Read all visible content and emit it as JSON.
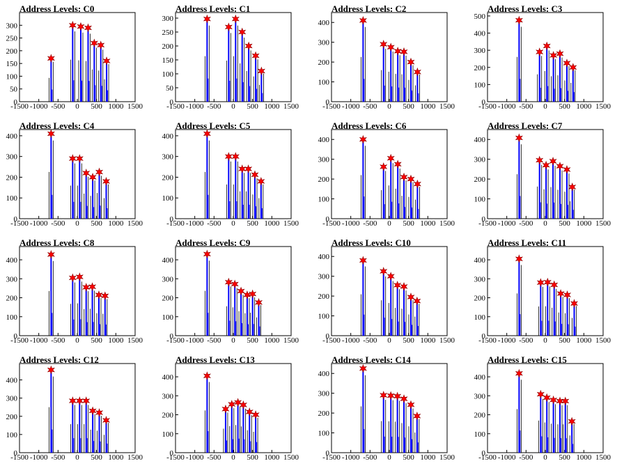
{
  "page": {
    "columns": 4,
    "rows": 4
  },
  "colors": {
    "axis": "#000000",
    "hist_black": "#000000",
    "hist_blue": "#0000ff",
    "marker": "#ff0000",
    "marker_outline": "#8b0000"
  },
  "chart_data": [
    {
      "type": "bar",
      "title": "Address Levels: C0",
      "xlim": [
        -1500,
        1500
      ],
      "xticks": [
        -1500,
        -1000,
        -500,
        0,
        500,
        1000,
        1500
      ],
      "ylim": [
        0,
        350
      ],
      "yticks": [
        0,
        50,
        100,
        150,
        200,
        250,
        300
      ],
      "peaks": [
        {
          "x": -680,
          "y": 170
        },
        {
          "x": -120,
          "y": 300
        },
        {
          "x": 90,
          "y": 295
        },
        {
          "x": 280,
          "y": 290
        },
        {
          "x": 440,
          "y": 230
        },
        {
          "x": 610,
          "y": 222
        },
        {
          "x": 760,
          "y": 160
        }
      ]
    },
    {
      "type": "bar",
      "title": "Address Levels: C1",
      "xlim": [
        -1500,
        1500
      ],
      "xticks": [
        -1500,
        -1000,
        -500,
        0,
        500,
        1000,
        1500
      ],
      "ylim": [
        0,
        320
      ],
      "yticks": [
        0,
        50,
        100,
        150,
        200,
        250,
        300
      ],
      "peaks": [
        {
          "x": -680,
          "y": 297
        },
        {
          "x": -120,
          "y": 268
        },
        {
          "x": 60,
          "y": 297
        },
        {
          "x": 230,
          "y": 250
        },
        {
          "x": 400,
          "y": 200
        },
        {
          "x": 580,
          "y": 165
        },
        {
          "x": 730,
          "y": 110
        }
      ]
    },
    {
      "type": "bar",
      "title": "Address Levels: C2",
      "xlim": [
        -1500,
        1500
      ],
      "xticks": [
        -1500,
        -1000,
        -500,
        0,
        500,
        1000,
        1500
      ],
      "ylim": [
        0,
        450
      ],
      "yticks": [
        0,
        100,
        200,
        300,
        400
      ],
      "peaks": [
        {
          "x": -680,
          "y": 410
        },
        {
          "x": -150,
          "y": 290
        },
        {
          "x": 40,
          "y": 275
        },
        {
          "x": 220,
          "y": 255
        },
        {
          "x": 380,
          "y": 252
        },
        {
          "x": 560,
          "y": 200
        },
        {
          "x": 730,
          "y": 150
        }
      ]
    },
    {
      "type": "bar",
      "title": "Address Levels: C3",
      "xlim": [
        -1500,
        1500
      ],
      "xticks": [
        -1500,
        -1000,
        -500,
        0,
        500,
        1000,
        1500
      ],
      "ylim": [
        0,
        520
      ],
      "yticks": [
        0,
        100,
        200,
        300,
        400,
        500
      ],
      "peaks": [
        {
          "x": -680,
          "y": 475
        },
        {
          "x": -150,
          "y": 290
        },
        {
          "x": 40,
          "y": 325
        },
        {
          "x": 210,
          "y": 270
        },
        {
          "x": 380,
          "y": 280
        },
        {
          "x": 560,
          "y": 225
        },
        {
          "x": 720,
          "y": 200
        }
      ]
    },
    {
      "type": "bar",
      "title": "Address Levels: C4",
      "xlim": [
        -1500,
        1500
      ],
      "xticks": [
        -1500,
        -1000,
        -500,
        0,
        500,
        1000,
        1500
      ],
      "ylim": [
        0,
        430
      ],
      "yticks": [
        0,
        100,
        200,
        300,
        400
      ],
      "peaks": [
        {
          "x": -680,
          "y": 410
        },
        {
          "x": -120,
          "y": 290
        },
        {
          "x": 60,
          "y": 290
        },
        {
          "x": 230,
          "y": 220
        },
        {
          "x": 400,
          "y": 200
        },
        {
          "x": 570,
          "y": 225
        },
        {
          "x": 750,
          "y": 180
        }
      ]
    },
    {
      "type": "bar",
      "title": "Address Levels: C5",
      "xlim": [
        -1500,
        1500
      ],
      "xticks": [
        -1500,
        -1000,
        -500,
        0,
        500,
        1000,
        1500
      ],
      "ylim": [
        0,
        430
      ],
      "yticks": [
        0,
        100,
        200,
        300,
        400
      ],
      "peaks": [
        {
          "x": -680,
          "y": 410
        },
        {
          "x": -120,
          "y": 300
        },
        {
          "x": 60,
          "y": 300
        },
        {
          "x": 230,
          "y": 240
        },
        {
          "x": 390,
          "y": 240
        },
        {
          "x": 560,
          "y": 212
        },
        {
          "x": 720,
          "y": 180
        }
      ]
    },
    {
      "type": "bar",
      "title": "Address Levels: C6",
      "xlim": [
        -1500,
        1500
      ],
      "xticks": [
        -1500,
        -1000,
        -500,
        0,
        500,
        1000,
        1500
      ],
      "ylim": [
        0,
        450
      ],
      "yticks": [
        0,
        100,
        200,
        300,
        400
      ],
      "peaks": [
        {
          "x": -680,
          "y": 400
        },
        {
          "x": -150,
          "y": 262
        },
        {
          "x": 40,
          "y": 305
        },
        {
          "x": 220,
          "y": 275
        },
        {
          "x": 380,
          "y": 210
        },
        {
          "x": 560,
          "y": 200
        },
        {
          "x": 730,
          "y": 175
        }
      ]
    },
    {
      "type": "bar",
      "title": "Address Levels: C7",
      "xlim": [
        -1500,
        1500
      ],
      "xticks": [
        -1500,
        -1000,
        -500,
        0,
        500,
        1000,
        1500
      ],
      "ylim": [
        0,
        450
      ],
      "yticks": [
        0,
        100,
        200,
        300,
        400
      ],
      "peaks": [
        {
          "x": -680,
          "y": 408
        },
        {
          "x": -150,
          "y": 295
        },
        {
          "x": 20,
          "y": 270
        },
        {
          "x": 200,
          "y": 290
        },
        {
          "x": 380,
          "y": 265
        },
        {
          "x": 560,
          "y": 248
        },
        {
          "x": 700,
          "y": 160
        }
      ]
    },
    {
      "type": "bar",
      "title": "Address Levels: C8",
      "xlim": [
        -1500,
        1500
      ],
      "xticks": [
        -1500,
        -1000,
        -500,
        0,
        500,
        1000,
        1500
      ],
      "ylim": [
        0,
        470
      ],
      "yticks": [
        0,
        100,
        200,
        300,
        400
      ],
      "peaks": [
        {
          "x": -680,
          "y": 428
        },
        {
          "x": -120,
          "y": 305
        },
        {
          "x": 60,
          "y": 310
        },
        {
          "x": 230,
          "y": 255
        },
        {
          "x": 390,
          "y": 258
        },
        {
          "x": 560,
          "y": 215
        },
        {
          "x": 720,
          "y": 210
        }
      ]
    },
    {
      "type": "bar",
      "title": "Address Levels: C9",
      "xlim": [
        -1500,
        1500
      ],
      "xticks": [
        -1500,
        -1000,
        -500,
        0,
        500,
        1000,
        1500
      ],
      "ylim": [
        0,
        470
      ],
      "yticks": [
        0,
        100,
        200,
        300,
        400
      ],
      "peaks": [
        {
          "x": -680,
          "y": 430
        },
        {
          "x": -120,
          "y": 282
        },
        {
          "x": 40,
          "y": 272
        },
        {
          "x": 200,
          "y": 235
        },
        {
          "x": 360,
          "y": 215
        },
        {
          "x": 500,
          "y": 220
        },
        {
          "x": 660,
          "y": 175
        }
      ]
    },
    {
      "type": "bar",
      "title": "Address Levels: C10",
      "xlim": [
        -1500,
        1500
      ],
      "xticks": [
        -1500,
        -1000,
        -500,
        0,
        500,
        1000,
        1500
      ],
      "ylim": [
        0,
        450
      ],
      "yticks": [
        0,
        100,
        200,
        300,
        400
      ],
      "peaks": [
        {
          "x": -680,
          "y": 380
        },
        {
          "x": -150,
          "y": 325
        },
        {
          "x": 40,
          "y": 300
        },
        {
          "x": 210,
          "y": 255
        },
        {
          "x": 380,
          "y": 248
        },
        {
          "x": 560,
          "y": 195
        },
        {
          "x": 720,
          "y": 175
        }
      ]
    },
    {
      "type": "bar",
      "title": "Address Levels: C11",
      "xlim": [
        -1500,
        1500
      ],
      "xticks": [
        -1500,
        -1000,
        -500,
        0,
        500,
        1000,
        1500
      ],
      "ylim": [
        0,
        470
      ],
      "yticks": [
        0,
        100,
        200,
        300,
        400
      ],
      "peaks": [
        {
          "x": -680,
          "y": 405
        },
        {
          "x": -120,
          "y": 280
        },
        {
          "x": 60,
          "y": 282
        },
        {
          "x": 230,
          "y": 268
        },
        {
          "x": 400,
          "y": 222
        },
        {
          "x": 570,
          "y": 215
        },
        {
          "x": 750,
          "y": 170
        }
      ]
    },
    {
      "type": "bar",
      "title": "Address Levels: C12",
      "xlim": [
        -1500,
        1500
      ],
      "xticks": [
        -1500,
        -1000,
        -500,
        0,
        500,
        1000,
        1500
      ],
      "ylim": [
        0,
        490
      ],
      "yticks": [
        0,
        100,
        200,
        300,
        400
      ],
      "peaks": [
        {
          "x": -680,
          "y": 455
        },
        {
          "x": -120,
          "y": 285
        },
        {
          "x": 60,
          "y": 285
        },
        {
          "x": 230,
          "y": 285
        },
        {
          "x": 400,
          "y": 230
        },
        {
          "x": 570,
          "y": 220
        },
        {
          "x": 750,
          "y": 178
        }
      ]
    },
    {
      "type": "bar",
      "title": "Address Levels: C13",
      "xlim": [
        -1500,
        1500
      ],
      "xticks": [
        -1500,
        -1000,
        -500,
        0,
        500,
        1000,
        1500
      ],
      "ylim": [
        0,
        470
      ],
      "yticks": [
        0,
        100,
        200,
        300,
        400
      ],
      "peaks": [
        {
          "x": -680,
          "y": 405
        },
        {
          "x": -200,
          "y": 230
        },
        {
          "x": -40,
          "y": 255
        },
        {
          "x": 120,
          "y": 265
        },
        {
          "x": 260,
          "y": 252
        },
        {
          "x": 420,
          "y": 215
        },
        {
          "x": 580,
          "y": 200
        }
      ]
    },
    {
      "type": "bar",
      "title": "Address Levels: C14",
      "xlim": [
        -1500,
        1500
      ],
      "xticks": [
        -1500,
        -1000,
        -500,
        0,
        500,
        1000,
        1500
      ],
      "ylim": [
        0,
        450
      ],
      "yticks": [
        0,
        100,
        200,
        300,
        400
      ],
      "peaks": [
        {
          "x": -680,
          "y": 425
        },
        {
          "x": -150,
          "y": 290
        },
        {
          "x": 40,
          "y": 288
        },
        {
          "x": 210,
          "y": 285
        },
        {
          "x": 380,
          "y": 272
        },
        {
          "x": 560,
          "y": 242
        },
        {
          "x": 720,
          "y": 185
        }
      ]
    },
    {
      "type": "bar",
      "title": "Address Levels: C15",
      "xlim": [
        -1500,
        1500
      ],
      "xticks": [
        -1500,
        -1000,
        -500,
        0,
        500,
        1000,
        1500
      ],
      "ylim": [
        0,
        470
      ],
      "yticks": [
        0,
        100,
        200,
        300,
        400
      ],
      "peaks": [
        {
          "x": -680,
          "y": 418
        },
        {
          "x": -120,
          "y": 308
        },
        {
          "x": 40,
          "y": 290
        },
        {
          "x": 210,
          "y": 278
        },
        {
          "x": 380,
          "y": 272
        },
        {
          "x": 520,
          "y": 272
        },
        {
          "x": 690,
          "y": 165
        }
      ]
    }
  ]
}
